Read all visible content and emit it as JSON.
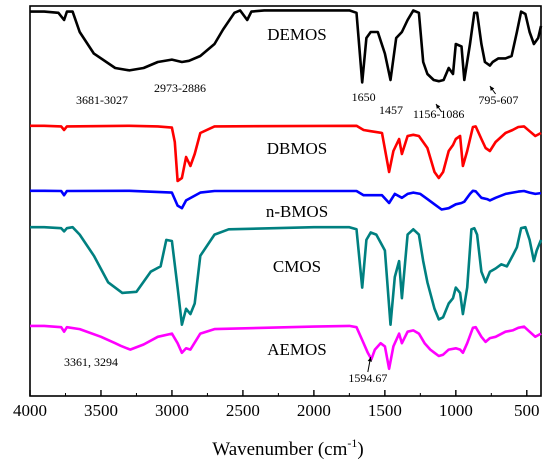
{
  "chart_data": {
    "type": "line",
    "xlabel": "Wavenumber (cm",
    "xlabel_sup": "-1",
    "xlabel_close": ")",
    "xlim": [
      4000,
      400
    ],
    "x_reversed": true,
    "x_ticks": [
      4000,
      3500,
      3000,
      2500,
      2000,
      1500,
      1000,
      500
    ],
    "tick_labels": [
      "4000",
      "3500",
      "3000",
      "2500",
      "2000",
      "1500",
      "1000",
      "500"
    ],
    "y_axis_shown": false,
    "grid": false,
    "series": [
      {
        "name": "DEMOS",
        "color": "#000000",
        "points": [
          [
            4000,
            0.97
          ],
          [
            3900,
            0.97
          ],
          [
            3800,
            0.96
          ],
          [
            3760,
            0.9
          ],
          [
            3740,
            0.97
          ],
          [
            3700,
            0.97
          ],
          [
            3650,
            0.8
          ],
          [
            3550,
            0.62
          ],
          [
            3400,
            0.5
          ],
          [
            3300,
            0.48
          ],
          [
            3200,
            0.5
          ],
          [
            3100,
            0.55
          ],
          [
            3000,
            0.57
          ],
          [
            2930,
            0.55
          ],
          [
            2880,
            0.56
          ],
          [
            2800,
            0.6
          ],
          [
            2700,
            0.7
          ],
          [
            2640,
            0.82
          ],
          [
            2560,
            0.96
          ],
          [
            2520,
            0.98
          ],
          [
            2470,
            0.9
          ],
          [
            2440,
            0.97
          ],
          [
            2350,
            0.98
          ],
          [
            2000,
            0.98
          ],
          [
            1750,
            0.98
          ],
          [
            1700,
            0.96
          ],
          [
            1660,
            0.38
          ],
          [
            1630,
            0.75
          ],
          [
            1600,
            0.8
          ],
          [
            1550,
            0.8
          ],
          [
            1500,
            0.62
          ],
          [
            1460,
            0.4
          ],
          [
            1420,
            0.75
          ],
          [
            1380,
            0.8
          ],
          [
            1340,
            0.9
          ],
          [
            1300,
            0.98
          ],
          [
            1260,
            0.96
          ],
          [
            1230,
            0.55
          ],
          [
            1200,
            0.45
          ],
          [
            1156,
            0.4
          ],
          [
            1120,
            0.39
          ],
          [
            1086,
            0.4
          ],
          [
            1050,
            0.5
          ],
          [
            1020,
            0.45
          ],
          [
            1000,
            0.7
          ],
          [
            960,
            0.68
          ],
          [
            940,
            0.4
          ],
          [
            900,
            0.7
          ],
          [
            870,
            0.96
          ],
          [
            850,
            0.96
          ],
          [
            820,
            0.7
          ],
          [
            795,
            0.55
          ],
          [
            760,
            0.52
          ],
          [
            740,
            0.55
          ],
          [
            700,
            0.58
          ],
          [
            650,
            0.58
          ],
          [
            607,
            0.6
          ],
          [
            570,
            0.8
          ],
          [
            540,
            0.97
          ],
          [
            510,
            0.95
          ],
          [
            480,
            0.8
          ],
          [
            450,
            0.7
          ],
          [
            420,
            0.75
          ],
          [
            400,
            0.85
          ]
        ]
      },
      {
        "name": "DBMOS",
        "color": "#ff0000",
        "points": [
          [
            4000,
            0.97
          ],
          [
            3900,
            0.97
          ],
          [
            3780,
            0.96
          ],
          [
            3760,
            0.9
          ],
          [
            3740,
            0.96
          ],
          [
            3300,
            0.97
          ],
          [
            3100,
            0.96
          ],
          [
            3000,
            0.94
          ],
          [
            2980,
            0.7
          ],
          [
            2960,
            0.05
          ],
          [
            2930,
            0.1
          ],
          [
            2900,
            0.45
          ],
          [
            2870,
            0.3
          ],
          [
            2840,
            0.5
          ],
          [
            2800,
            0.85
          ],
          [
            2700,
            0.96
          ],
          [
            1700,
            0.97
          ],
          [
            1650,
            0.9
          ],
          [
            1600,
            0.88
          ],
          [
            1520,
            0.85
          ],
          [
            1470,
            0.2
          ],
          [
            1440,
            0.55
          ],
          [
            1400,
            0.75
          ],
          [
            1380,
            0.5
          ],
          [
            1340,
            0.8
          ],
          [
            1300,
            0.82
          ],
          [
            1260,
            0.8
          ],
          [
            1200,
            0.6
          ],
          [
            1150,
            0.2
          ],
          [
            1120,
            0.1
          ],
          [
            1090,
            0.2
          ],
          [
            1050,
            0.55
          ],
          [
            1020,
            0.65
          ],
          [
            1000,
            0.75
          ],
          [
            970,
            0.8
          ],
          [
            950,
            0.3
          ],
          [
            920,
            0.55
          ],
          [
            880,
            0.95
          ],
          [
            860,
            0.96
          ],
          [
            820,
            0.75
          ],
          [
            790,
            0.6
          ],
          [
            760,
            0.55
          ],
          [
            720,
            0.7
          ],
          [
            650,
            0.85
          ],
          [
            600,
            0.9
          ],
          [
            560,
            0.95
          ],
          [
            520,
            0.96
          ],
          [
            480,
            0.88
          ],
          [
            440,
            0.8
          ],
          [
            400,
            0.85
          ]
        ]
      },
      {
        "name": "n-BMOS",
        "color": "#0000ff",
        "points": [
          [
            4000,
            0.97
          ],
          [
            3900,
            0.97
          ],
          [
            3780,
            0.96
          ],
          [
            3760,
            0.8
          ],
          [
            3740,
            0.96
          ],
          [
            3300,
            0.97
          ],
          [
            3000,
            0.9
          ],
          [
            2960,
            0.4
          ],
          [
            2930,
            0.3
          ],
          [
            2900,
            0.6
          ],
          [
            2800,
            0.9
          ],
          [
            2700,
            0.96
          ],
          [
            1700,
            0.96
          ],
          [
            1650,
            0.8
          ],
          [
            1600,
            0.8
          ],
          [
            1520,
            0.8
          ],
          [
            1470,
            0.5
          ],
          [
            1430,
            0.85
          ],
          [
            1380,
            0.7
          ],
          [
            1340,
            0.85
          ],
          [
            1300,
            0.9
          ],
          [
            1250,
            0.85
          ],
          [
            1200,
            0.65
          ],
          [
            1150,
            0.45
          ],
          [
            1100,
            0.25
          ],
          [
            1050,
            0.3
          ],
          [
            1000,
            0.45
          ],
          [
            960,
            0.5
          ],
          [
            940,
            0.55
          ],
          [
            900,
            0.85
          ],
          [
            880,
            0.97
          ],
          [
            860,
            0.95
          ],
          [
            820,
            0.7
          ],
          [
            780,
            0.65
          ],
          [
            760,
            0.6
          ],
          [
            720,
            0.7
          ],
          [
            650,
            0.85
          ],
          [
            600,
            0.9
          ],
          [
            560,
            0.94
          ],
          [
            520,
            0.96
          ],
          [
            480,
            0.9
          ],
          [
            440,
            0.85
          ],
          [
            400,
            0.88
          ]
        ]
      },
      {
        "name": "CMOS",
        "color": "#008080",
        "points": [
          [
            4000,
            0.97
          ],
          [
            3900,
            0.97
          ],
          [
            3780,
            0.96
          ],
          [
            3760,
            0.93
          ],
          [
            3740,
            0.96
          ],
          [
            3700,
            0.97
          ],
          [
            3650,
            0.9
          ],
          [
            3550,
            0.7
          ],
          [
            3450,
            0.45
          ],
          [
            3350,
            0.35
          ],
          [
            3250,
            0.36
          ],
          [
            3150,
            0.55
          ],
          [
            3080,
            0.6
          ],
          [
            3040,
            0.85
          ],
          [
            3000,
            0.84
          ],
          [
            2960,
            0.4
          ],
          [
            2930,
            0.05
          ],
          [
            2900,
            0.2
          ],
          [
            2870,
            0.15
          ],
          [
            2840,
            0.25
          ],
          [
            2800,
            0.7
          ],
          [
            2700,
            0.9
          ],
          [
            2600,
            0.95
          ],
          [
            2000,
            0.97
          ],
          [
            1750,
            0.97
          ],
          [
            1700,
            0.95
          ],
          [
            1660,
            0.4
          ],
          [
            1630,
            0.85
          ],
          [
            1600,
            0.92
          ],
          [
            1560,
            0.9
          ],
          [
            1500,
            0.75
          ],
          [
            1460,
            0.05
          ],
          [
            1430,
            0.5
          ],
          [
            1400,
            0.65
          ],
          [
            1380,
            0.3
          ],
          [
            1340,
            0.9
          ],
          [
            1300,
            0.95
          ],
          [
            1260,
            0.9
          ],
          [
            1230,
            0.65
          ],
          [
            1200,
            0.45
          ],
          [
            1150,
            0.2
          ],
          [
            1120,
            0.1
          ],
          [
            1090,
            0.12
          ],
          [
            1050,
            0.25
          ],
          [
            1020,
            0.3
          ],
          [
            1000,
            0.4
          ],
          [
            970,
            0.35
          ],
          [
            950,
            0.15
          ],
          [
            920,
            0.4
          ],
          [
            890,
            0.95
          ],
          [
            870,
            0.96
          ],
          [
            850,
            0.9
          ],
          [
            820,
            0.55
          ],
          [
            790,
            0.45
          ],
          [
            760,
            0.55
          ],
          [
            720,
            0.58
          ],
          [
            680,
            0.62
          ],
          [
            640,
            0.6
          ],
          [
            600,
            0.7
          ],
          [
            570,
            0.78
          ],
          [
            540,
            0.96
          ],
          [
            510,
            0.97
          ],
          [
            480,
            0.85
          ],
          [
            450,
            0.65
          ],
          [
            430,
            0.75
          ],
          [
            400,
            0.85
          ]
        ]
      },
      {
        "name": "AEMOS",
        "color": "#ff00ff",
        "points": [
          [
            4000,
            0.97
          ],
          [
            3900,
            0.97
          ],
          [
            3780,
            0.95
          ],
          [
            3760,
            0.88
          ],
          [
            3740,
            0.95
          ],
          [
            3650,
            0.92
          ],
          [
            3500,
            0.8
          ],
          [
            3400,
            0.7
          ],
          [
            3361,
            0.66
          ],
          [
            3294,
            0.6
          ],
          [
            3200,
            0.68
          ],
          [
            3100,
            0.8
          ],
          [
            3000,
            0.85
          ],
          [
            2960,
            0.7
          ],
          [
            2930,
            0.55
          ],
          [
            2900,
            0.62
          ],
          [
            2870,
            0.6
          ],
          [
            2800,
            0.85
          ],
          [
            2700,
            0.92
          ],
          [
            2000,
            0.96
          ],
          [
            1750,
            0.97
          ],
          [
            1700,
            0.95
          ],
          [
            1660,
            0.75
          ],
          [
            1620,
            0.55
          ],
          [
            1595,
            0.45
          ],
          [
            1570,
            0.6
          ],
          [
            1530,
            0.7
          ],
          [
            1500,
            0.65
          ],
          [
            1470,
            0.3
          ],
          [
            1440,
            0.65
          ],
          [
            1400,
            0.85
          ],
          [
            1380,
            0.7
          ],
          [
            1340,
            0.88
          ],
          [
            1300,
            0.9
          ],
          [
            1260,
            0.85
          ],
          [
            1220,
            0.7
          ],
          [
            1180,
            0.6
          ],
          [
            1150,
            0.55
          ],
          [
            1120,
            0.5
          ],
          [
            1090,
            0.52
          ],
          [
            1050,
            0.6
          ],
          [
            1000,
            0.62
          ],
          [
            970,
            0.6
          ],
          [
            950,
            0.55
          ],
          [
            920,
            0.7
          ],
          [
            880,
            0.94
          ],
          [
            860,
            0.95
          ],
          [
            820,
            0.8
          ],
          [
            790,
            0.72
          ],
          [
            760,
            0.78
          ],
          [
            720,
            0.8
          ],
          [
            650,
            0.88
          ],
          [
            600,
            0.9
          ],
          [
            560,
            0.94
          ],
          [
            520,
            0.96
          ],
          [
            480,
            0.88
          ],
          [
            440,
            0.8
          ],
          [
            400,
            0.85
          ]
        ]
      }
    ],
    "annotations": [
      {
        "text": "3681-3027"
      },
      {
        "text": "2973-2886"
      },
      {
        "text": "1650"
      },
      {
        "text": "1457"
      },
      {
        "text": "1156-1086"
      },
      {
        "text": "795-607"
      },
      {
        "text": "3361, 3294"
      },
      {
        "text": "1594.67"
      }
    ]
  }
}
